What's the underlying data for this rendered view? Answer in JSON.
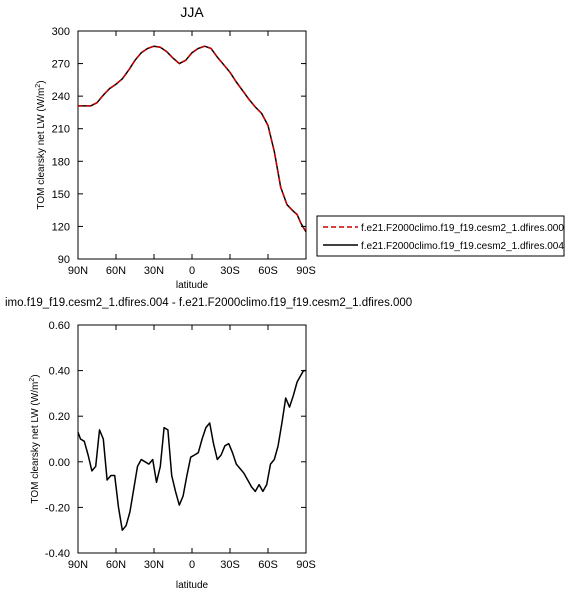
{
  "colors": {
    "series_000": "#cc0000",
    "series_004": "#000000",
    "axes": "#000000",
    "background": "#ffffff"
  },
  "chart_data": [
    {
      "type": "line",
      "title": "JJA",
      "xlabel": "latitude",
      "ylabel_main": "TOM clearsky net LW (W/m",
      "ylabel_sup": "2",
      "ylabel_close": ")",
      "xlim": [
        90,
        -90
      ],
      "ylim": [
        90,
        300
      ],
      "xticks": [
        90,
        60,
        30,
        0,
        -30,
        -60,
        -90
      ],
      "xtick_labels": [
        "90N",
        "60N",
        "30N",
        "0",
        "30S",
        "60S",
        "90S"
      ],
      "yticks": [
        90,
        120,
        150,
        180,
        210,
        240,
        270,
        300
      ],
      "ytick_labels": [
        "90",
        "120",
        "150",
        "180",
        "210",
        "240",
        "270",
        "300"
      ],
      "grid": false,
      "legend": {
        "placement": "right",
        "entries": [
          {
            "name": "f.e21.F2000climo.f19_f19.cesm2_1.dfires.000",
            "style": "dashed",
            "color": "#cc0000"
          },
          {
            "name": "f.e21.F2000climo.f19_f19.cesm2_1.dfires.004",
            "style": "solid",
            "color": "#000000"
          }
        ]
      },
      "series": [
        {
          "name": "f.e21.F2000climo.f19_f19.cesm2_1.dfires.004",
          "color": "#000000",
          "style": "solid",
          "x": [
            90,
            85,
            80,
            75,
            70,
            65,
            60,
            55,
            50,
            45,
            40,
            35,
            30,
            25,
            20,
            15,
            10,
            5,
            0,
            -5,
            -10,
            -15,
            -20,
            -25,
            -30,
            -35,
            -40,
            -45,
            -50,
            -55,
            -60,
            -65,
            -70,
            -75,
            -80,
            -83,
            -86,
            -90
          ],
          "y": [
            231,
            231,
            231,
            234,
            241,
            247,
            251,
            256,
            264,
            273,
            280,
            284,
            286,
            285,
            281,
            275,
            270,
            273,
            280,
            284,
            286,
            284,
            276,
            269,
            262,
            253,
            245,
            237,
            230,
            224,
            213,
            189,
            156,
            140,
            134,
            131,
            123,
            115
          ]
        },
        {
          "name": "f.e21.F2000climo.f19_f19.cesm2_1.dfires.000",
          "color": "#cc0000",
          "style": "dashed",
          "x": [
            90,
            85,
            80,
            75,
            70,
            65,
            60,
            55,
            50,
            45,
            40,
            35,
            30,
            25,
            20,
            15,
            10,
            5,
            0,
            -5,
            -10,
            -15,
            -20,
            -25,
            -30,
            -35,
            -40,
            -45,
            -50,
            -55,
            -60,
            -65,
            -70,
            -75,
            -80,
            -83,
            -86,
            -90
          ],
          "y": [
            231,
            231,
            231,
            234,
            241,
            247,
            251,
            256,
            264,
            273,
            280,
            284,
            286,
            285,
            281,
            275,
            270,
            273,
            280,
            284,
            286,
            284,
            276,
            269,
            262,
            253,
            245,
            237,
            230,
            224,
            213,
            189,
            156,
            140,
            134,
            131,
            123,
            115
          ]
        }
      ]
    },
    {
      "type": "line",
      "title": "imo.f19_f19.cesm2_1.dfires.004 - f.e21.F2000climo.f19_f19.cesm2_1.dfires.000",
      "xlabel": "latitude",
      "ylabel_main": "TOM clearsky net LW (W/m",
      "ylabel_sup": "2",
      "ylabel_close": ")",
      "xlim": [
        90,
        -90
      ],
      "ylim": [
        -0.4,
        0.6
      ],
      "xticks": [
        90,
        60,
        30,
        0,
        -30,
        -60,
        -90
      ],
      "xtick_labels": [
        "90N",
        "60N",
        "30N",
        "0",
        "30S",
        "60S",
        "90S"
      ],
      "yticks": [
        -0.4,
        -0.2,
        0,
        0.2,
        0.4,
        0.6
      ],
      "ytick_labels": [
        "-0.40",
        "-0.20",
        "0.00",
        "0.20",
        "0.40",
        "0.60"
      ],
      "grid": false,
      "series": [
        {
          "name": "",
          "color": "#000000",
          "style": "solid",
          "x": [
            90,
            88,
            85,
            82,
            79,
            76,
            73,
            70,
            67,
            64,
            61,
            58,
            55,
            52,
            49,
            46,
            43,
            40,
            37,
            34,
            31,
            28,
            25,
            22,
            19,
            16,
            13,
            10,
            7,
            4,
            1,
            -2,
            -5,
            -8,
            -11,
            -14,
            -17,
            -20,
            -23,
            -26,
            -29,
            -32,
            -35,
            -38,
            -41,
            -44,
            -47,
            -50,
            -53,
            -56,
            -59,
            -62,
            -65,
            -68,
            -71,
            -74,
            -77,
            -80,
            -83,
            -86,
            -88,
            -90
          ],
          "y": [
            0.13,
            0.1,
            0.09,
            0.03,
            -0.04,
            -0.02,
            0.14,
            0.1,
            -0.08,
            -0.06,
            -0.06,
            -0.2,
            -0.3,
            -0.28,
            -0.22,
            -0.12,
            -0.02,
            0.01,
            0.0,
            -0.01,
            0.01,
            -0.09,
            -0.02,
            0.15,
            0.14,
            -0.06,
            -0.13,
            -0.19,
            -0.15,
            -0.06,
            0.02,
            0.03,
            0.04,
            0.1,
            0.15,
            0.17,
            0.08,
            0.01,
            0.03,
            0.07,
            0.08,
            0.04,
            -0.01,
            -0.03,
            -0.05,
            -0.08,
            -0.11,
            -0.13,
            -0.1,
            -0.13,
            -0.1,
            -0.01,
            0.01,
            0.07,
            0.17,
            0.28,
            0.24,
            0.29,
            0.35,
            0.38,
            0.4,
            0.4
          ]
        }
      ]
    }
  ]
}
